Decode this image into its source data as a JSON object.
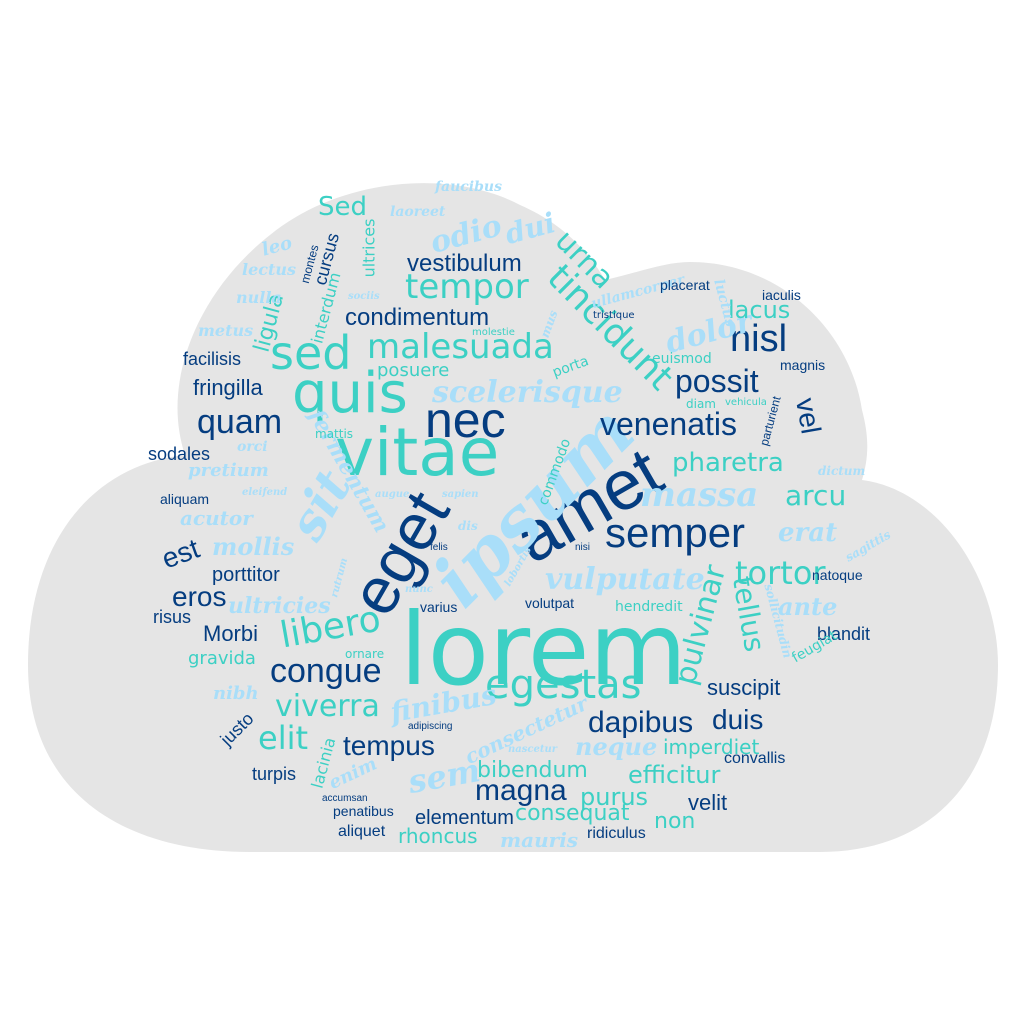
{
  "colors": {
    "cloud": "#e5e5e5",
    "dark_blue": "#053d80",
    "teal": "#3cd0c4",
    "light_blue": "#a9def9",
    "background": "#ffffff"
  },
  "words": [
    "lorem",
    "amet",
    "ipsum",
    "eget",
    "vitae",
    "nec",
    "quis",
    "sed",
    "semper",
    "sit",
    "egestas",
    "tincidunt",
    "massa",
    "congue",
    "tempor",
    "malesuada",
    "venenatis",
    "possit",
    "nisl",
    "tortor",
    "quam",
    "scelerisque",
    "vulputate",
    "libero",
    "pulvinar",
    "tellus",
    "dapibus",
    "elit",
    "magna",
    "tempus",
    "viverra",
    "duis",
    "finibus",
    "urna",
    "dolor",
    "odio",
    "dui",
    "Sed",
    "vestibulum",
    "condimentum",
    "lacus",
    "arcu",
    "vel",
    "pharetra",
    "eros",
    "est",
    "erat",
    "ante",
    "fermentum",
    "mollis",
    "ultricies",
    "neque",
    "sem",
    "Morbi",
    "suscipit",
    "bibendum",
    "efficitur",
    "velit",
    "non",
    "purus",
    "consequat",
    "elementum",
    "rhoncus",
    "mauris",
    "ridiculus",
    "aliquet",
    "penatibus",
    "accumsan",
    "turpis",
    "convallis",
    "imperdiet",
    "consectetur",
    "enim",
    "lacinia",
    "justo",
    "adipiscing",
    "gravida",
    "nibh",
    "risus",
    "varius",
    "volutpat",
    "hendredit",
    "blandit",
    "feugiat",
    "natoque",
    "sagittis",
    "sollicitudin",
    "porttitor",
    "acutor",
    "pretium",
    "aliquam",
    "sodales",
    "orci",
    "mattis",
    "fringilla",
    "facilisis",
    "metus",
    "ligula",
    "interdum",
    "cursus",
    "montes",
    "lectus",
    "leo",
    "nulla",
    "laoreet",
    "faucibus",
    "ultrices",
    "sociis",
    "ullamcorper",
    "mus",
    "molestie",
    "placerat",
    "luctus",
    "iaculis",
    "tristique",
    "euismod",
    "magnis",
    "posuere",
    "porta",
    "diam",
    "vehicula",
    "parturient",
    "dictum",
    "commodo",
    "sapien",
    "augue",
    "dis",
    "eleifend",
    "felis",
    "nisi",
    "lobortis",
    "nunc",
    "nascetur",
    "ornare",
    "rutrum",
    "lacus",
    "cras"
  ]
}
